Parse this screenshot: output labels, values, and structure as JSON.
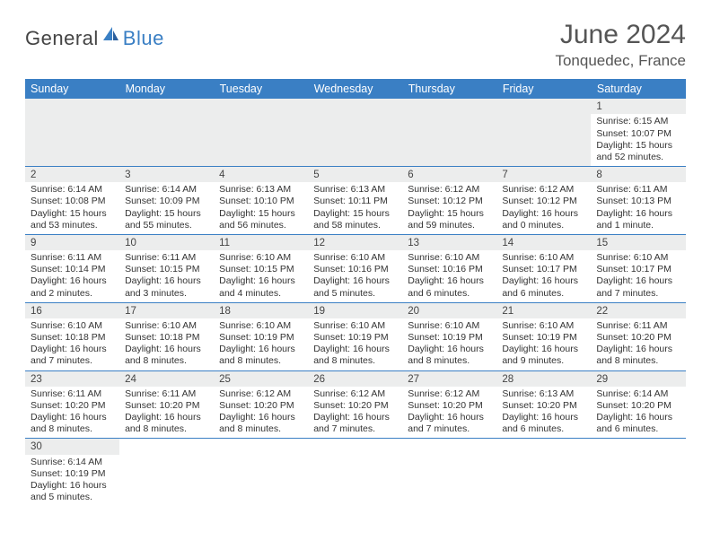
{
  "brand": {
    "text1": "General",
    "text2": "Blue"
  },
  "title": "June 2024",
  "location": "Tonquedec, France",
  "colors": {
    "header_bg": "#3a7fc4",
    "header_text": "#ffffff",
    "stripe": "#eceded",
    "rule": "#3a7fc4",
    "body_text": "#333333"
  },
  "weekdays": [
    "Sunday",
    "Monday",
    "Tuesday",
    "Wednesday",
    "Thursday",
    "Friday",
    "Saturday"
  ],
  "weeks": [
    [
      null,
      null,
      null,
      null,
      null,
      null,
      {
        "n": "1",
        "sr": "Sunrise: 6:15 AM",
        "ss": "Sunset: 10:07 PM",
        "dl": "Daylight: 15 hours and 52 minutes."
      }
    ],
    [
      {
        "n": "2",
        "sr": "Sunrise: 6:14 AM",
        "ss": "Sunset: 10:08 PM",
        "dl": "Daylight: 15 hours and 53 minutes."
      },
      {
        "n": "3",
        "sr": "Sunrise: 6:14 AM",
        "ss": "Sunset: 10:09 PM",
        "dl": "Daylight: 15 hours and 55 minutes."
      },
      {
        "n": "4",
        "sr": "Sunrise: 6:13 AM",
        "ss": "Sunset: 10:10 PM",
        "dl": "Daylight: 15 hours and 56 minutes."
      },
      {
        "n": "5",
        "sr": "Sunrise: 6:13 AM",
        "ss": "Sunset: 10:11 PM",
        "dl": "Daylight: 15 hours and 58 minutes."
      },
      {
        "n": "6",
        "sr": "Sunrise: 6:12 AM",
        "ss": "Sunset: 10:12 PM",
        "dl": "Daylight: 15 hours and 59 minutes."
      },
      {
        "n": "7",
        "sr": "Sunrise: 6:12 AM",
        "ss": "Sunset: 10:12 PM",
        "dl": "Daylight: 16 hours and 0 minutes."
      },
      {
        "n": "8",
        "sr": "Sunrise: 6:11 AM",
        "ss": "Sunset: 10:13 PM",
        "dl": "Daylight: 16 hours and 1 minute."
      }
    ],
    [
      {
        "n": "9",
        "sr": "Sunrise: 6:11 AM",
        "ss": "Sunset: 10:14 PM",
        "dl": "Daylight: 16 hours and 2 minutes."
      },
      {
        "n": "10",
        "sr": "Sunrise: 6:11 AM",
        "ss": "Sunset: 10:15 PM",
        "dl": "Daylight: 16 hours and 3 minutes."
      },
      {
        "n": "11",
        "sr": "Sunrise: 6:10 AM",
        "ss": "Sunset: 10:15 PM",
        "dl": "Daylight: 16 hours and 4 minutes."
      },
      {
        "n": "12",
        "sr": "Sunrise: 6:10 AM",
        "ss": "Sunset: 10:16 PM",
        "dl": "Daylight: 16 hours and 5 minutes."
      },
      {
        "n": "13",
        "sr": "Sunrise: 6:10 AM",
        "ss": "Sunset: 10:16 PM",
        "dl": "Daylight: 16 hours and 6 minutes."
      },
      {
        "n": "14",
        "sr": "Sunrise: 6:10 AM",
        "ss": "Sunset: 10:17 PM",
        "dl": "Daylight: 16 hours and 6 minutes."
      },
      {
        "n": "15",
        "sr": "Sunrise: 6:10 AM",
        "ss": "Sunset: 10:17 PM",
        "dl": "Daylight: 16 hours and 7 minutes."
      }
    ],
    [
      {
        "n": "16",
        "sr": "Sunrise: 6:10 AM",
        "ss": "Sunset: 10:18 PM",
        "dl": "Daylight: 16 hours and 7 minutes."
      },
      {
        "n": "17",
        "sr": "Sunrise: 6:10 AM",
        "ss": "Sunset: 10:18 PM",
        "dl": "Daylight: 16 hours and 8 minutes."
      },
      {
        "n": "18",
        "sr": "Sunrise: 6:10 AM",
        "ss": "Sunset: 10:19 PM",
        "dl": "Daylight: 16 hours and 8 minutes."
      },
      {
        "n": "19",
        "sr": "Sunrise: 6:10 AM",
        "ss": "Sunset: 10:19 PM",
        "dl": "Daylight: 16 hours and 8 minutes."
      },
      {
        "n": "20",
        "sr": "Sunrise: 6:10 AM",
        "ss": "Sunset: 10:19 PM",
        "dl": "Daylight: 16 hours and 8 minutes."
      },
      {
        "n": "21",
        "sr": "Sunrise: 6:10 AM",
        "ss": "Sunset: 10:19 PM",
        "dl": "Daylight: 16 hours and 9 minutes."
      },
      {
        "n": "22",
        "sr": "Sunrise: 6:11 AM",
        "ss": "Sunset: 10:20 PM",
        "dl": "Daylight: 16 hours and 8 minutes."
      }
    ],
    [
      {
        "n": "23",
        "sr": "Sunrise: 6:11 AM",
        "ss": "Sunset: 10:20 PM",
        "dl": "Daylight: 16 hours and 8 minutes."
      },
      {
        "n": "24",
        "sr": "Sunrise: 6:11 AM",
        "ss": "Sunset: 10:20 PM",
        "dl": "Daylight: 16 hours and 8 minutes."
      },
      {
        "n": "25",
        "sr": "Sunrise: 6:12 AM",
        "ss": "Sunset: 10:20 PM",
        "dl": "Daylight: 16 hours and 8 minutes."
      },
      {
        "n": "26",
        "sr": "Sunrise: 6:12 AM",
        "ss": "Sunset: 10:20 PM",
        "dl": "Daylight: 16 hours and 7 minutes."
      },
      {
        "n": "27",
        "sr": "Sunrise: 6:12 AM",
        "ss": "Sunset: 10:20 PM",
        "dl": "Daylight: 16 hours and 7 minutes."
      },
      {
        "n": "28",
        "sr": "Sunrise: 6:13 AM",
        "ss": "Sunset: 10:20 PM",
        "dl": "Daylight: 16 hours and 6 minutes."
      },
      {
        "n": "29",
        "sr": "Sunrise: 6:14 AM",
        "ss": "Sunset: 10:20 PM",
        "dl": "Daylight: 16 hours and 6 minutes."
      }
    ],
    [
      {
        "n": "30",
        "sr": "Sunrise: 6:14 AM",
        "ss": "Sunset: 10:19 PM",
        "dl": "Daylight: 16 hours and 5 minutes."
      },
      null,
      null,
      null,
      null,
      null,
      null
    ]
  ]
}
